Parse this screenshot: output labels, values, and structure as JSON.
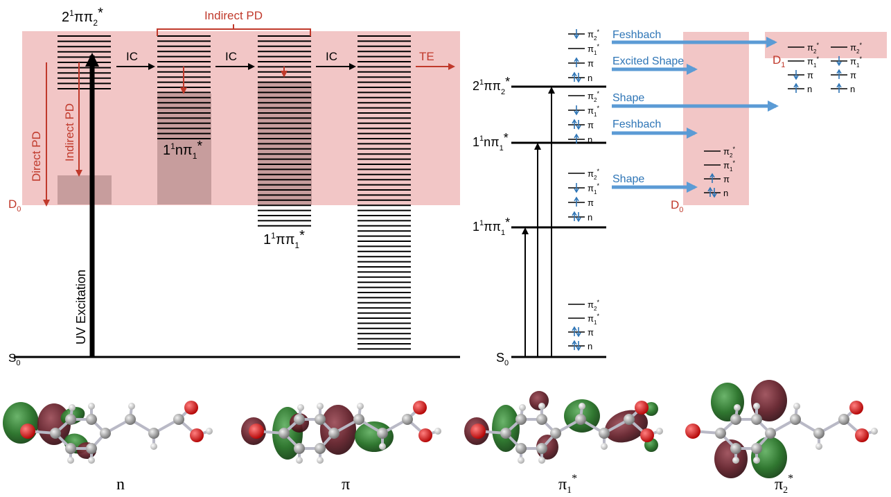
{
  "colors": {
    "band": "#f2c6c6",
    "band_strong": "#b58c8c",
    "red": "#c0392b",
    "blue_arrow": "#5b9bd5",
    "electron_blue": "#2e75b6",
    "orbital_green": "#1e6b1e",
    "orbital_maroon": "#6b1f2a",
    "atom_carbon": "#9a9a9a",
    "atom_oxygen": "#e00000",
    "atom_hydrogen": "#e8e8e8"
  },
  "left_panel": {
    "label_s0": "S",
    "label_s0_sub": "0",
    "label_d0": "D",
    "label_d0_sub": "0",
    "label_2pipi": "2",
    "label_2pipi_sup": "1",
    "label_2pipi_tail": "ππ",
    "label_2pipi_sub": "2",
    "label_2pipi_star": "*",
    "label_1npi": "1",
    "label_1npi_sup": "1",
    "label_1npi_tail": "nπ",
    "label_1npi_sub": "1",
    "label_1npi_star": "*",
    "label_1pipi": "1",
    "label_1pipi_sup": "1",
    "label_1pipi_tail": "ππ",
    "label_1pipi_sub": "1",
    "label_1pipi_star": "*",
    "uv_excitation": "UV Excitation",
    "direct_pd": "Direct PD",
    "indirect_pd_vertical": "Indirect PD",
    "indirect_pd_bracket": "Indirect PD",
    "ic_1": "IC",
    "ic_2": "IC",
    "ic_3": "IC",
    "te": "TE"
  },
  "right_panel": {
    "state_s0": "S",
    "state_s0_sub": "0",
    "state_2pipi": "2",
    "state_2pipi_sup": "1",
    "state_2pipi_tail": "ππ",
    "state_2pipi_sub": "2",
    "state_2pipi_star": "*",
    "state_1npi": "1",
    "state_1npi_sup": "1",
    "state_1npi_tail": "nπ",
    "state_1npi_sub": "1",
    "state_1npi_star": "*",
    "state_1pipi": "1",
    "state_1pipi_sup": "1",
    "state_1pipi_tail": "ππ",
    "state_1pipi_sub": "1",
    "state_1pipi_star": "*",
    "d0": "D",
    "d0_sub": "0",
    "d1": "D",
    "d1_sub": "1",
    "resonance_1": "Feshbach",
    "resonance_2": "Excited Shape",
    "resonance_3": "Shape",
    "resonance_4": "Feshbach",
    "resonance_5": "Shape",
    "orbital_pi2": "π",
    "orbital_pi2_sub": "2",
    "orbital_pi1": "π",
    "orbital_pi1_sub": "1",
    "orbital_pi": "π",
    "orbital_n": "n",
    "star": "*"
  },
  "molecule_labels": {
    "n": "n",
    "pi": "π",
    "pi1": "π",
    "pi1_sub": "1",
    "pi2": "π",
    "pi2_sub": "2",
    "star": "*"
  }
}
